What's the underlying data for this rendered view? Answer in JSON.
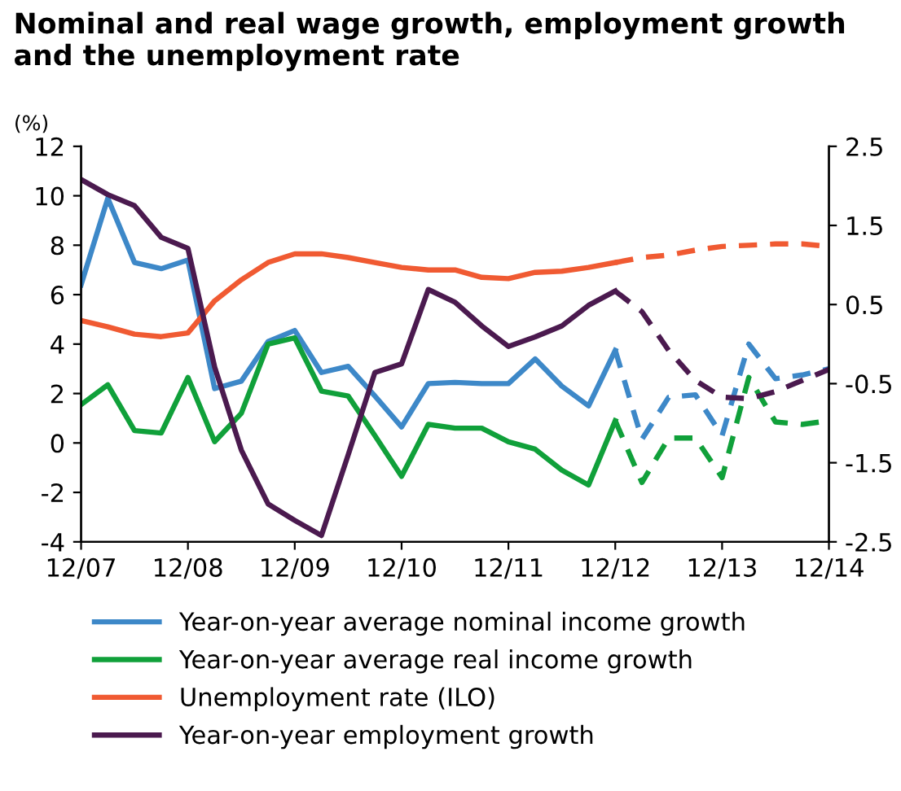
{
  "chart_data": {
    "type": "line",
    "title": "Nominal and real wage growth, employment growth and the unemployment rate",
    "ylabel": "(%)",
    "categories": [
      "12/07",
      null,
      null,
      null,
      "12/08",
      null,
      null,
      null,
      "12/09",
      null,
      null,
      null,
      "12/10",
      null,
      null,
      null,
      "12/11",
      null,
      null,
      null,
      "12/12",
      null,
      null,
      null,
      "12/13",
      null,
      null,
      null,
      "12/14"
    ],
    "series": [
      {
        "name": "Year-on-year average nominal income growth",
        "color": "#3d88c8",
        "line_style": "solid",
        "values": [
          6.4,
          9.9,
          7.3,
          7.05,
          7.4,
          2.2,
          2.5,
          4.1,
          4.55,
          2.85,
          3.1,
          1.9,
          0.65,
          2.4,
          2.45,
          2.4,
          2.4,
          3.4,
          2.3,
          1.5,
          3.75,
          null,
          null,
          null,
          null,
          null,
          null,
          null,
          null
        ]
      },
      {
        "name": "Year-on-year average real income growth",
        "color": "#10a03a",
        "line_style": "solid",
        "values": [
          1.55,
          2.35,
          0.5,
          0.4,
          2.65,
          0.05,
          1.2,
          4.0,
          4.25,
          2.1,
          1.9,
          0.3,
          -1.35,
          0.75,
          0.6,
          0.6,
          0.05,
          -0.25,
          -1.1,
          -1.7,
          0.9,
          null,
          null,
          null,
          null,
          null,
          null,
          null,
          null
        ]
      },
      {
        "name": "Unemployment rate (ILO)",
        "color": "#f05a32",
        "line_style": "solid",
        "values": [
          4.95,
          4.7,
          4.4,
          4.3,
          4.45,
          5.75,
          6.6,
          7.3,
          7.65,
          7.65,
          7.5,
          7.3,
          7.1,
          7.0,
          7.0,
          6.7,
          6.65,
          6.9,
          6.95,
          7.1,
          7.3,
          null,
          null,
          null,
          null,
          null,
          null,
          null,
          null
        ]
      },
      {
        "name": "Year-on-year employment growth",
        "color": "#4b1a4f",
        "line_style": "solid",
        "axis": "y2",
        "values": [
          2.08,
          1.89,
          1.75,
          1.35,
          1.21,
          -0.29,
          -1.34,
          -2.02,
          -2.23,
          -2.42,
          -1.4,
          -0.36,
          -0.25,
          0.69,
          0.53,
          0.23,
          -0.03,
          0.09,
          0.23,
          0.49,
          0.67,
          null,
          null,
          null,
          null,
          null,
          null,
          null,
          null
        ]
      },
      {
        "color": "#3d88c8",
        "line_style": "dashed",
        "values": [
          null,
          null,
          null,
          null,
          null,
          null,
          null,
          null,
          null,
          null,
          null,
          null,
          null,
          null,
          null,
          null,
          null,
          null,
          null,
          null,
          3.75,
          0.15,
          1.85,
          1.95,
          0.3,
          4.0,
          2.6,
          2.75,
          3.0
        ]
      },
      {
        "color": "#10a03a",
        "line_style": "dashed",
        "values": [
          null,
          null,
          null,
          null,
          null,
          null,
          null,
          null,
          null,
          null,
          null,
          null,
          null,
          null,
          null,
          null,
          null,
          null,
          null,
          null,
          0.9,
          -1.6,
          0.2,
          0.2,
          -1.4,
          2.65,
          0.85,
          0.75,
          0.9
        ]
      },
      {
        "color": "#f05a32",
        "line_style": "dashed",
        "values": [
          null,
          null,
          null,
          null,
          null,
          null,
          null,
          null,
          null,
          null,
          null,
          null,
          null,
          null,
          null,
          null,
          null,
          null,
          null,
          null,
          7.3,
          7.5,
          7.6,
          7.8,
          7.95,
          8.0,
          8.05,
          8.05,
          7.95
        ]
      },
      {
        "color": "#4b1a4f",
        "line_style": "dashed",
        "axis": "y2",
        "values": [
          null,
          null,
          null,
          null,
          null,
          null,
          null,
          null,
          null,
          null,
          null,
          null,
          null,
          null,
          null,
          null,
          null,
          null,
          null,
          null,
          0.67,
          0.41,
          -0.08,
          -0.46,
          -0.67,
          -0.69,
          -0.6,
          -0.46,
          -0.32
        ]
      }
    ],
    "ylim": [
      -4,
      12
    ],
    "yticks": [
      -4,
      -2,
      0,
      2,
      4,
      6,
      8,
      10,
      12
    ],
    "y2lim": [
      -2.5,
      2.5
    ],
    "y2ticks": [
      -2.5,
      -1.5,
      -0.5,
      0.5,
      1.5,
      2.5
    ],
    "grid": false,
    "legend": "bottom",
    "marker": "none"
  }
}
